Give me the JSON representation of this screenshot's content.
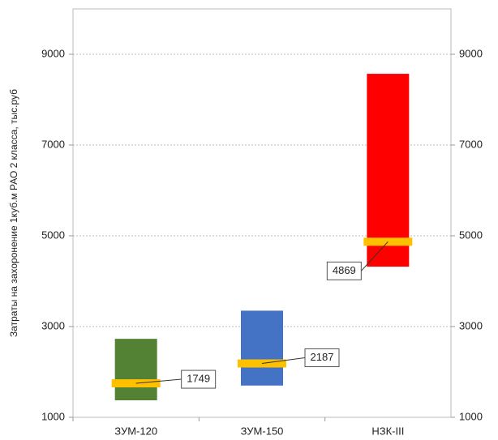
{
  "chart_data": {
    "type": "floating-bar",
    "y_label": "Затраты на захоронение 1куб.м РАО 2 класса, тыс.руб",
    "categories": [
      "ЗУМ-120",
      "ЗУМ-150",
      "НЗК-III"
    ],
    "low": [
      1375,
      1700,
      4320
    ],
    "high": [
      2730,
      3350,
      8570
    ],
    "values": [
      1749,
      2187,
      4869
    ],
    "colors": [
      "#548235",
      "#4472c4",
      "#ff0000"
    ],
    "mean_color": "#ffc000",
    "ylim": [
      1000,
      10000
    ],
    "yticks": [
      1000,
      3000,
      5000,
      7000,
      9000
    ],
    "grid": true
  }
}
